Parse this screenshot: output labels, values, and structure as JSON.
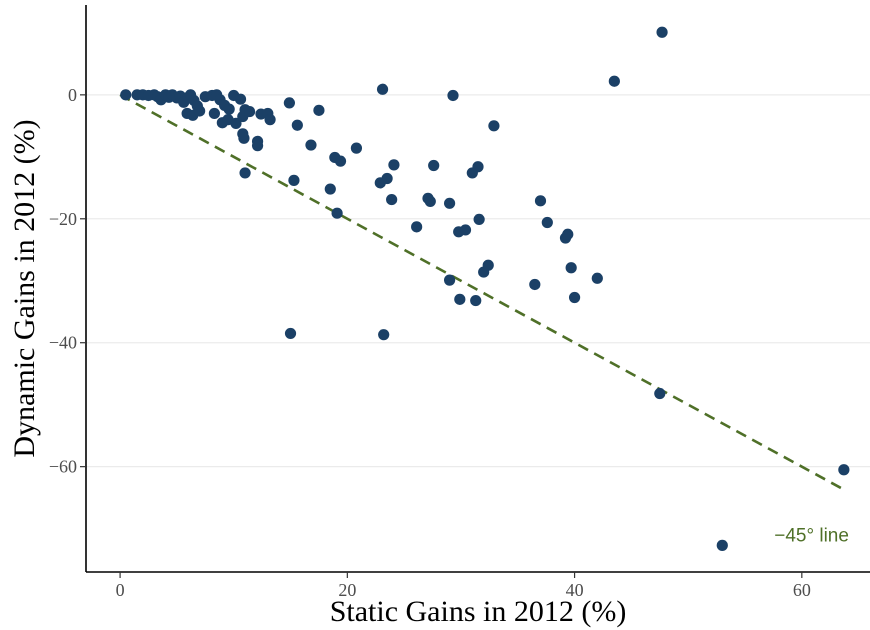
{
  "chart_data": {
    "type": "scatter",
    "xlabel": "Static Gains in 2012 (%)",
    "ylabel": "Dynamic Gains in 2012 (%)",
    "xlim": [
      -3,
      66
    ],
    "ylim": [
      -77,
      14.5
    ],
    "x_ticks": [
      0,
      20,
      40,
      60
    ],
    "y_ticks": [
      0,
      -20,
      -40,
      -60
    ],
    "x_tick_labels": [
      "0",
      "20",
      "40",
      "60"
    ],
    "y_tick_labels": [
      "0",
      "−20",
      "−40",
      "−60"
    ],
    "grid": "horizontal major",
    "point_color": "#1b4066",
    "reference_line": {
      "label": "−45° line",
      "slope": -1,
      "x_range": [
        0,
        63.5
      ],
      "style": "dashed",
      "color": "#4f7028"
    },
    "points": [
      {
        "x": 0.5,
        "y": 0.0
      },
      {
        "x": 1.5,
        "y": 0.0
      },
      {
        "x": 2.0,
        "y": 0.0
      },
      {
        "x": 2.5,
        "y": -0.1
      },
      {
        "x": 3.0,
        "y": 0.0
      },
      {
        "x": 3.3,
        "y": -0.3
      },
      {
        "x": 3.6,
        "y": -0.8
      },
      {
        "x": 4.0,
        "y": 0.0
      },
      {
        "x": 4.3,
        "y": -0.4
      },
      {
        "x": 4.6,
        "y": 0.0
      },
      {
        "x": 5.0,
        "y": -0.5
      },
      {
        "x": 5.3,
        "y": -0.2
      },
      {
        "x": 5.6,
        "y": -1.2
      },
      {
        "x": 6.0,
        "y": -0.4
      },
      {
        "x": 6.2,
        "y": 0.0
      },
      {
        "x": 6.5,
        "y": -0.9
      },
      {
        "x": 6.8,
        "y": -1.8
      },
      {
        "x": 5.9,
        "y": -3.0
      },
      {
        "x": 6.4,
        "y": -3.3
      },
      {
        "x": 7.0,
        "y": -2.6
      },
      {
        "x": 7.5,
        "y": -0.3
      },
      {
        "x": 8.1,
        "y": -0.1
      },
      {
        "x": 8.5,
        "y": 0.0
      },
      {
        "x": 8.3,
        "y": -3.0
      },
      {
        "x": 8.8,
        "y": -0.8
      },
      {
        "x": 9.2,
        "y": -1.7
      },
      {
        "x": 9.6,
        "y": -2.3
      },
      {
        "x": 9.0,
        "y": -4.5
      },
      {
        "x": 9.5,
        "y": -4.0
      },
      {
        "x": 10.0,
        "y": -0.1
      },
      {
        "x": 10.2,
        "y": -4.6
      },
      {
        "x": 10.6,
        "y": -0.7
      },
      {
        "x": 10.8,
        "y": -3.5
      },
      {
        "x": 11.0,
        "y": -2.4
      },
      {
        "x": 11.4,
        "y": -2.7
      },
      {
        "x": 10.8,
        "y": -6.3
      },
      {
        "x": 10.9,
        "y": -7.0
      },
      {
        "x": 12.1,
        "y": -7.5
      },
      {
        "x": 12.1,
        "y": -8.2
      },
      {
        "x": 12.4,
        "y": -3.1
      },
      {
        "x": 13.0,
        "y": -3.0
      },
      {
        "x": 13.2,
        "y": -4.0
      },
      {
        "x": 11.0,
        "y": -12.6
      },
      {
        "x": 14.9,
        "y": -1.3
      },
      {
        "x": 15.6,
        "y": -4.9
      },
      {
        "x": 15.3,
        "y": -13.8
      },
      {
        "x": 16.8,
        "y": -8.1
      },
      {
        "x": 17.5,
        "y": -2.5
      },
      {
        "x": 18.5,
        "y": -15.2
      },
      {
        "x": 18.9,
        "y": -10.1
      },
      {
        "x": 19.4,
        "y": -10.7
      },
      {
        "x": 19.1,
        "y": -19.1
      },
      {
        "x": 20.8,
        "y": -8.6
      },
      {
        "x": 15.0,
        "y": -38.5
      },
      {
        "x": 22.9,
        "y": -14.2
      },
      {
        "x": 23.1,
        "y": 0.9
      },
      {
        "x": 23.5,
        "y": -13.5
      },
      {
        "x": 23.9,
        "y": -16.9
      },
      {
        "x": 24.1,
        "y": -11.3
      },
      {
        "x": 23.2,
        "y": -38.7
      },
      {
        "x": 26.1,
        "y": -21.3
      },
      {
        "x": 27.1,
        "y": -16.7
      },
      {
        "x": 27.3,
        "y": -17.2
      },
      {
        "x": 27.6,
        "y": -11.4
      },
      {
        "x": 29.0,
        "y": -17.5
      },
      {
        "x": 29.3,
        "y": -0.1
      },
      {
        "x": 29.0,
        "y": -29.9
      },
      {
        "x": 29.8,
        "y": -22.1
      },
      {
        "x": 30.4,
        "y": -21.8
      },
      {
        "x": 29.9,
        "y": -33.0
      },
      {
        "x": 31.0,
        "y": -12.6
      },
      {
        "x": 31.5,
        "y": -11.6
      },
      {
        "x": 31.6,
        "y": -20.1
      },
      {
        "x": 32.0,
        "y": -28.6
      },
      {
        "x": 31.3,
        "y": -33.2
      },
      {
        "x": 32.4,
        "y": -27.5
      },
      {
        "x": 32.9,
        "y": -5.0
      },
      {
        "x": 36.5,
        "y": -30.6
      },
      {
        "x": 37.0,
        "y": -17.1
      },
      {
        "x": 37.6,
        "y": -20.6
      },
      {
        "x": 39.2,
        "y": -23.1
      },
      {
        "x": 39.4,
        "y": -22.5
      },
      {
        "x": 39.7,
        "y": -27.9
      },
      {
        "x": 40.0,
        "y": -32.7
      },
      {
        "x": 42.0,
        "y": -29.6
      },
      {
        "x": 43.5,
        "y": 2.2
      },
      {
        "x": 47.7,
        "y": 10.1
      },
      {
        "x": 47.5,
        "y": -48.2
      },
      {
        "x": 53.0,
        "y": -72.7
      },
      {
        "x": 63.7,
        "y": -60.5
      }
    ]
  }
}
